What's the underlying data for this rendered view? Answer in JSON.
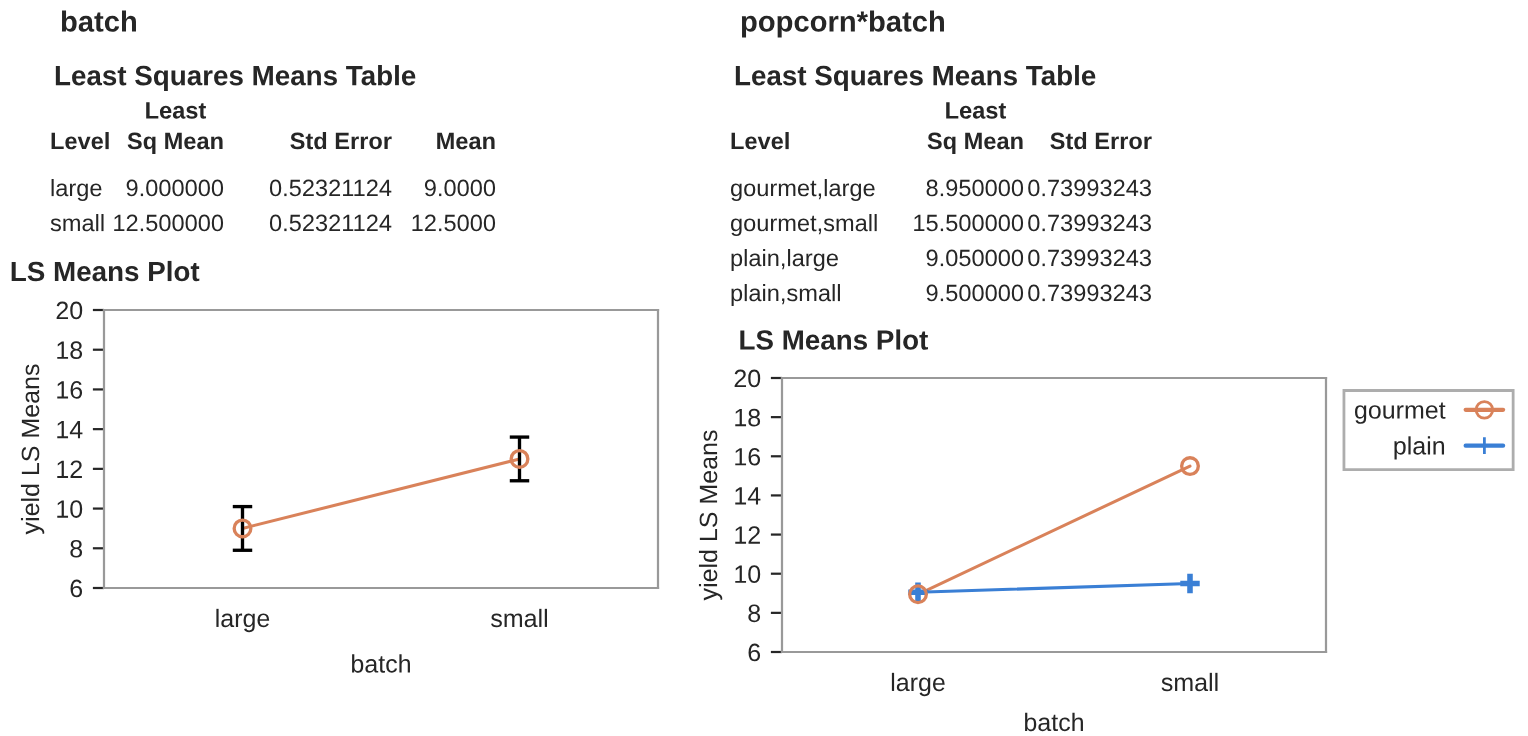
{
  "chart_data": [
    {
      "type": "other",
      "title": "batch",
      "subtitle": "Least Squares Means Table",
      "categories": [
        "Level",
        "Least\nSq Mean",
        "Std Error",
        "Mean"
      ],
      "cell_labels": [
        [
          "large",
          "9.000000",
          "0.52321124",
          "9.0000"
        ],
        [
          "small",
          "12.500000",
          "0.52321124",
          "12.5000"
        ]
      ]
    },
    {
      "type": "line",
      "title": "LS Means Plot",
      "xlabel": "batch",
      "ylabel": "yield LS Means",
      "categories": [
        "large",
        "small"
      ],
      "ylim": [
        6,
        20
      ],
      "yticks": [
        6,
        8,
        10,
        12,
        14,
        16,
        18,
        20
      ],
      "grid": false,
      "legend": false,
      "marker": "circle",
      "series": [
        {
          "color": "#d9825a",
          "values": [
            9.0,
            12.5
          ],
          "errors": [
            1.1,
            1.1
          ]
        }
      ]
    },
    {
      "type": "other",
      "title": "popcorn*batch",
      "subtitle": "Least Squares Means Table",
      "categories": [
        "Level",
        "Least\nSq Mean",
        "Std Error"
      ],
      "cell_labels": [
        [
          "gourmet,large",
          "8.950000",
          "0.73993243"
        ],
        [
          "gourmet,small",
          "15.500000",
          "0.73993243"
        ],
        [
          "plain,large",
          "9.050000",
          "0.73993243"
        ],
        [
          "plain,small",
          "9.500000",
          "0.73993243"
        ]
      ]
    },
    {
      "type": "line",
      "title": "LS Means Plot",
      "xlabel": "batch",
      "ylabel": "yield LS Means",
      "categories": [
        "large",
        "small"
      ],
      "ylim": [
        6,
        20
      ],
      "yticks": [
        6,
        8,
        10,
        12,
        14,
        16,
        18,
        20
      ],
      "grid": false,
      "legend": "right",
      "series": [
        {
          "name": "gourmet",
          "color": "#d9825a",
          "marker": "circle",
          "values": [
            8.95,
            15.5
          ]
        },
        {
          "name": "plain",
          "color": "#3a7fd5",
          "marker": "cross",
          "values": [
            9.05,
            9.5
          ]
        }
      ]
    }
  ]
}
